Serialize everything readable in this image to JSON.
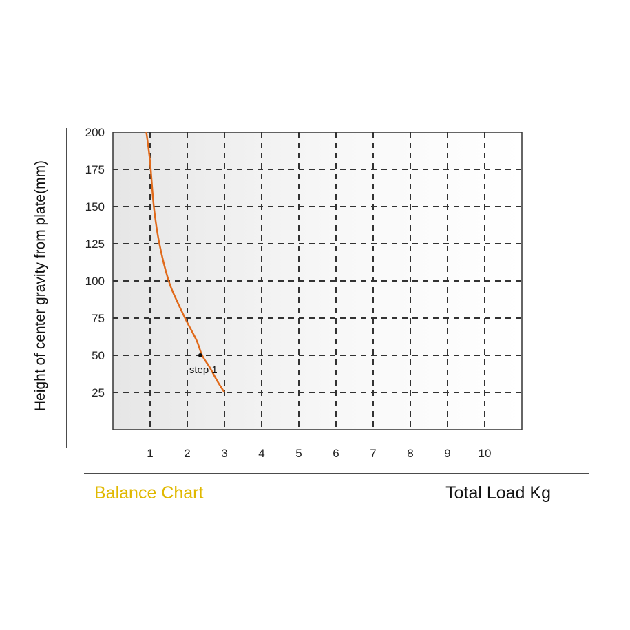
{
  "caption": "Balance Chart",
  "colors": {
    "curve": "#e06a1b",
    "caption": "#e0b800",
    "grid": "#333333",
    "plot_bg_left": "#e9e9e9",
    "plot_bg_right": "#ffffff"
  },
  "chart_data": {
    "type": "line",
    "xlabel": "Total Load Kg",
    "ylabel": "Height of center gravity from plate(mm)",
    "xlim": [
      0,
      11
    ],
    "ylim": [
      0,
      200
    ],
    "xticks": [
      1,
      2,
      3,
      4,
      5,
      6,
      7,
      8,
      9,
      10
    ],
    "yticks": [
      25,
      50,
      75,
      100,
      125,
      150,
      175,
      200
    ],
    "grid": true,
    "series": [
      {
        "x": [
          0.9,
          1.0,
          1.1,
          1.25,
          1.5,
          1.75,
          2.0,
          2.25,
          2.4,
          2.6,
          2.8,
          3.0
        ],
        "y": [
          200,
          180,
          150,
          125,
          100,
          85,
          72,
          60,
          50,
          42,
          33,
          25
        ]
      }
    ],
    "annotations": [
      {
        "text": "step 1",
        "x": 2.35,
        "y": 50
      }
    ]
  }
}
